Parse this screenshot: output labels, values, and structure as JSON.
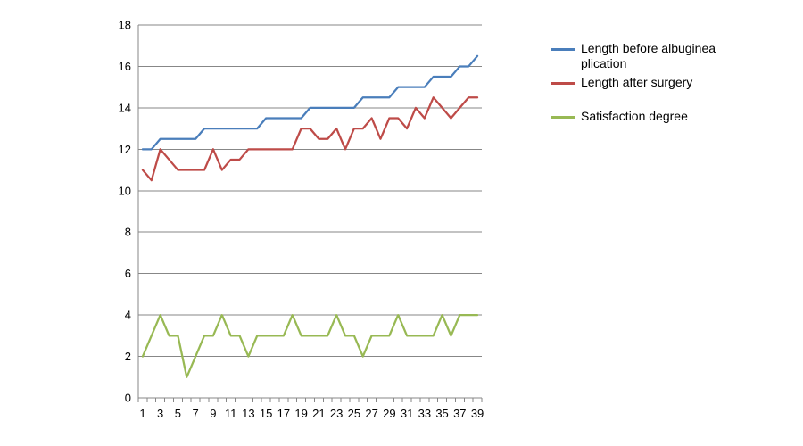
{
  "chart_data": {
    "type": "line",
    "title": "",
    "xlabel": "",
    "ylabel": "",
    "x": [
      1,
      2,
      3,
      4,
      5,
      6,
      7,
      8,
      9,
      10,
      11,
      12,
      13,
      14,
      15,
      16,
      17,
      18,
      19,
      20,
      21,
      22,
      23,
      24,
      25,
      26,
      27,
      28,
      29,
      30,
      31,
      32,
      33,
      34,
      35,
      36,
      37,
      38,
      39
    ],
    "x_tick_labels": [
      "1",
      "3",
      "5",
      "7",
      "9",
      "11",
      "13",
      "15",
      "17",
      "19",
      "21",
      "23",
      "25",
      "27",
      "29",
      "31",
      "33",
      "35",
      "37",
      "39"
    ],
    "ylim": [
      0,
      18
    ],
    "y_ticks": [
      "0",
      "2",
      "4",
      "6",
      "8",
      "10",
      "12",
      "14",
      "16",
      "18"
    ],
    "grid": "horizontal",
    "legend_position": "right",
    "series": [
      {
        "name": "Length before albuginea plication",
        "color": "#4a7ebb",
        "values": [
          12,
          12,
          12.5,
          12.5,
          12.5,
          12.5,
          12.5,
          13,
          13,
          13,
          13,
          13,
          13,
          13,
          13.5,
          13.5,
          13.5,
          13.5,
          13.5,
          14,
          14,
          14,
          14,
          14,
          14,
          14.5,
          14.5,
          14.5,
          14.5,
          15,
          15,
          15,
          15,
          15.5,
          15.5,
          15.5,
          16,
          16,
          16.5
        ]
      },
      {
        "name": "Length after surgery",
        "color": "#be4b48",
        "values": [
          11,
          10.5,
          12,
          11.5,
          11,
          11,
          11,
          11,
          12,
          11,
          11.5,
          11.5,
          12,
          12,
          12,
          12,
          12,
          12,
          13,
          13,
          12.5,
          12.5,
          13,
          12,
          13,
          13,
          13.5,
          12.5,
          13.5,
          13.5,
          13,
          14,
          13.5,
          14.5,
          14,
          13.5,
          14,
          14.5,
          14.5
        ]
      },
      {
        "name": "Satisfaction degree",
        "color": "#98b954",
        "values": [
          2,
          3,
          4,
          3,
          3,
          1,
          2,
          3,
          3,
          4,
          3,
          3,
          2,
          3,
          3,
          3,
          3,
          4,
          3,
          3,
          3,
          3,
          4,
          3,
          3,
          2,
          3,
          3,
          3,
          4,
          3,
          3,
          3,
          3,
          4,
          3,
          4,
          4,
          4
        ]
      }
    ]
  }
}
